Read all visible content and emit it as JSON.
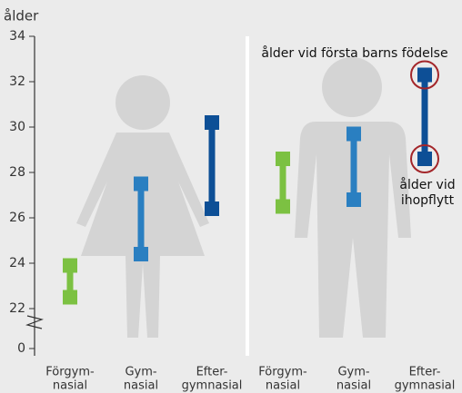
{
  "chart_data": {
    "type": "range",
    "y_label": "ålder",
    "ylim": [
      0,
      34
    ],
    "axis_break": [
      0,
      22
    ],
    "yticks": [
      0,
      22,
      24,
      26,
      28,
      30,
      32,
      34
    ],
    "categories": [
      [
        "Förgym-",
        "nasial"
      ],
      [
        "Gym-",
        "nasial"
      ],
      [
        "Efter-",
        "gymnasial"
      ],
      [
        "Förgym-",
        "nasial"
      ],
      [
        "Gym-",
        "nasial"
      ],
      [
        "Efter-",
        "gymnasial"
      ]
    ],
    "colors": [
      "#7cc142",
      "#2a7fc1",
      "#0d4f96",
      "#7cc142",
      "#2a7fc1",
      "#0d4f96"
    ],
    "series": [
      {
        "name": [
          "ålder vid",
          "ihopflytt"
        ],
        "values": [
          22.5,
          24.4,
          26.4,
          26.5,
          26.8,
          28.6
        ]
      },
      {
        "name": "ålder vid första barns födelse",
        "values": [
          23.9,
          27.5,
          30.2,
          28.6,
          29.7,
          32.3
        ]
      }
    ]
  }
}
